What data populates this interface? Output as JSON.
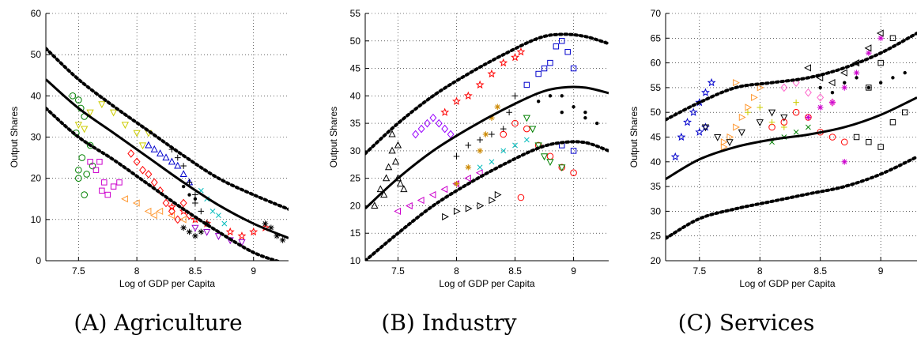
{
  "figure": {
    "captions": [
      "(A) Agriculture",
      "(B) Industry",
      "(C) Services"
    ]
  },
  "chart_data": [
    {
      "type": "scatter",
      "title": "",
      "xlabel": "Log of GDP per Capita",
      "ylabel": "Output Shares",
      "xlim": [
        7.22,
        9.3
      ],
      "ylim": [
        0,
        60
      ],
      "xticks": [
        7.5,
        8,
        8.5,
        9
      ],
      "yticks": [
        0,
        10,
        20,
        30,
        40,
        50,
        60
      ],
      "grid": "dotted",
      "fit": {
        "name": "fitted",
        "x": [
          7.22,
          7.5,
          7.8,
          8.1,
          8.4,
          8.7,
          9.0,
          9.3
        ],
        "y": [
          44,
          37,
          31,
          25,
          19,
          13.5,
          9,
          5.5
        ]
      },
      "bands": [
        {
          "name": "upper",
          "x": [
            7.22,
            7.5,
            7.8,
            8.1,
            8.4,
            8.7,
            9.0,
            9.3
          ],
          "y": [
            51.5,
            44,
            37.5,
            31.5,
            25.5,
            20,
            16,
            12.5
          ]
        },
        {
          "name": "lower",
          "x": [
            7.22,
            7.5,
            7.8,
            8.1,
            8.4,
            8.7,
            9.0,
            9.25
          ],
          "y": [
            37,
            30,
            24.5,
            18.5,
            12.5,
            7,
            2,
            -0.5
          ]
        }
      ],
      "series": [
        {
          "marker": "circle",
          "color": "#008000",
          "x": [
            7.45,
            7.5,
            7.52,
            7.55,
            7.48,
            7.5,
            7.57,
            7.53,
            7.6,
            7.62,
            7.55,
            7.5
          ],
          "y": [
            40,
            39,
            37,
            35,
            31,
            22,
            21,
            25,
            28,
            23,
            16,
            20
          ]
        },
        {
          "marker": "triangle-down",
          "color": "#cccc00",
          "x": [
            7.5,
            7.55,
            7.6,
            7.7,
            7.8,
            7.9,
            8.0,
            8.05,
            8.1
          ],
          "y": [
            33,
            32,
            36,
            38,
            36,
            33,
            31,
            28,
            31
          ]
        },
        {
          "marker": "square",
          "color": "#cc00cc",
          "x": [
            7.6,
            7.65,
            7.7,
            7.72,
            7.75,
            7.8,
            7.85,
            7.68
          ],
          "y": [
            24,
            22,
            17,
            19,
            16,
            18,
            19,
            24
          ]
        },
        {
          "marker": "triangle-left",
          "color": "#ff9933",
          "x": [
            7.9,
            8.0,
            8.1,
            8.15,
            8.2,
            8.3,
            8.4
          ],
          "y": [
            15,
            14,
            12,
            11,
            12,
            11,
            10
          ]
        },
        {
          "marker": "diamond",
          "color": "#ff0000",
          "x": [
            7.95,
            8.0,
            8.05,
            8.1,
            8.15,
            8.2,
            8.25,
            8.3,
            8.35,
            8.4,
            8.45
          ],
          "y": [
            26,
            24,
            22,
            21,
            19,
            17,
            14,
            12,
            10,
            14,
            11
          ]
        },
        {
          "marker": "triangle-up",
          "color": "#0000cc",
          "x": [
            8.1,
            8.15,
            8.2,
            8.25,
            8.3,
            8.35,
            8.4,
            8.45
          ],
          "y": [
            28,
            27,
            26,
            25,
            24,
            23,
            21,
            19
          ]
        },
        {
          "marker": "plus",
          "color": "#000000",
          "x": [
            8.3,
            8.35,
            8.4,
            8.45,
            8.5,
            8.5,
            8.55
          ],
          "y": [
            27,
            25,
            23,
            19,
            16,
            14,
            12
          ]
        },
        {
          "marker": "star",
          "color": "#ff0000",
          "x": [
            8.3,
            8.4,
            8.5,
            8.6,
            8.8,
            8.9,
            9.0,
            9.1
          ],
          "y": [
            13,
            12,
            10,
            9,
            7,
            6,
            7,
            8
          ]
        },
        {
          "marker": "cross",
          "color": "#00bbbb",
          "x": [
            8.55,
            8.6,
            8.65,
            8.7,
            8.75
          ],
          "y": [
            17,
            15,
            12,
            11,
            9
          ]
        },
        {
          "marker": "triangle-down",
          "color": "#9900cc",
          "x": [
            8.5,
            8.6,
            8.7,
            8.8,
            8.9
          ],
          "y": [
            8,
            7,
            6,
            5,
            4.5
          ]
        },
        {
          "marker": "asterisk",
          "color": "#000000",
          "x": [
            8.4,
            8.45,
            8.5,
            8.55,
            8.6,
            9.1,
            9.15,
            9.2,
            9.25
          ],
          "y": [
            8,
            7,
            6,
            7,
            9,
            9,
            8,
            6,
            5
          ]
        },
        {
          "marker": "dot",
          "color": "#000000",
          "x": [
            8.4,
            8.45,
            8.5
          ],
          "y": [
            18,
            16,
            15
          ]
        }
      ]
    },
    {
      "type": "scatter",
      "title": "",
      "xlabel": "Log of GDP per Capita",
      "ylabel": "Output Shares",
      "xlim": [
        7.22,
        9.3
      ],
      "ylim": [
        10,
        55
      ],
      "xticks": [
        7.5,
        8,
        8.5,
        9
      ],
      "yticks": [
        10,
        15,
        20,
        25,
        30,
        35,
        40,
        45,
        50,
        55
      ],
      "grid": "dotted",
      "fit": {
        "name": "fitted",
        "x": [
          7.22,
          7.5,
          7.8,
          8.1,
          8.4,
          8.7,
          8.9,
          9.1,
          9.3
        ],
        "y": [
          19.5,
          25,
          30,
          34,
          37.5,
          40.5,
          41.5,
          41.5,
          40.5
        ]
      },
      "bands": [
        {
          "name": "upper",
          "x": [
            7.22,
            7.5,
            7.8,
            8.1,
            8.4,
            8.7,
            8.9,
            9.1,
            9.3
          ],
          "y": [
            29.5,
            35,
            40,
            44,
            47.5,
            50.5,
            51.2,
            50.8,
            49.5
          ]
        },
        {
          "name": "lower",
          "x": [
            7.22,
            7.5,
            7.8,
            8.1,
            8.4,
            8.7,
            8.9,
            9.1,
            9.3
          ],
          "y": [
            10,
            15,
            20,
            24,
            27.5,
            30.5,
            31.5,
            31.5,
            30
          ]
        }
      ],
      "series": [
        {
          "marker": "triangle-up",
          "color": "#000000",
          "x": [
            7.3,
            7.35,
            7.4,
            7.42,
            7.45,
            7.48,
            7.5,
            7.52,
            7.55,
            7.5,
            7.45,
            7.38
          ],
          "y": [
            20,
            23,
            25,
            27,
            30,
            28,
            25,
            24,
            23,
            31,
            33,
            22
          ]
        },
        {
          "marker": "triangle-left",
          "color": "#cc00cc",
          "x": [
            7.5,
            7.6,
            7.7,
            7.8,
            7.9,
            8.0,
            8.1,
            8.2
          ],
          "y": [
            19,
            20,
            21,
            22,
            23,
            24,
            25,
            26
          ]
        },
        {
          "marker": "diamond",
          "color": "#9900ff",
          "x": [
            7.65,
            7.7,
            7.75,
            7.8,
            7.85,
            7.9,
            7.95
          ],
          "y": [
            33,
            34,
            35,
            36,
            35,
            34,
            33
          ]
        },
        {
          "marker": "triangle-right",
          "color": "#000000",
          "x": [
            7.9,
            8.0,
            8.1,
            8.2,
            8.3,
            8.35
          ],
          "y": [
            18,
            19,
            19.5,
            20,
            21,
            22
          ]
        },
        {
          "marker": "star",
          "color": "#ff0000",
          "x": [
            7.9,
            8.0,
            8.1,
            8.2,
            8.3,
            8.4,
            8.5,
            8.55
          ],
          "y": [
            37,
            39,
            40,
            42,
            44,
            46,
            47,
            48
          ]
        },
        {
          "marker": "asterisk",
          "color": "#cc8800",
          "x": [
            8.0,
            8.1,
            8.2,
            8.25,
            8.3,
            8.35
          ],
          "y": [
            24,
            27,
            30,
            33,
            36,
            38
          ]
        },
        {
          "marker": "plus",
          "color": "#000000",
          "x": [
            8.0,
            8.1,
            8.2,
            8.3,
            8.4,
            8.45,
            8.5
          ],
          "y": [
            29,
            31,
            32,
            33,
            34,
            37,
            40
          ]
        },
        {
          "marker": "cross",
          "color": "#00bbbb",
          "x": [
            8.2,
            8.3,
            8.4,
            8.5,
            8.6
          ],
          "y": [
            27,
            28,
            30,
            31,
            32
          ]
        },
        {
          "marker": "circle",
          "color": "#ff0000",
          "x": [
            8.4,
            8.5,
            8.6,
            8.7,
            8.8,
            8.9,
            9.0,
            8.55
          ],
          "y": [
            33,
            35,
            34,
            31,
            29,
            27,
            26,
            21.5
          ]
        },
        {
          "marker": "triangle-down",
          "color": "#008000",
          "x": [
            8.6,
            8.65,
            8.7,
            8.75,
            8.8,
            8.9
          ],
          "y": [
            36,
            34,
            31,
            29,
            28,
            27
          ]
        },
        {
          "marker": "square",
          "color": "#0000cc",
          "x": [
            8.6,
            8.7,
            8.75,
            8.8,
            8.85,
            8.9,
            8.95,
            9.0,
            8.9,
            9.0
          ],
          "y": [
            42,
            44,
            45,
            46,
            49,
            50,
            48,
            45,
            31,
            30
          ]
        },
        {
          "marker": "dot",
          "color": "#000000",
          "x": [
            8.7,
            8.8,
            8.9,
            9.0,
            9.1,
            9.2,
            8.9,
            9.1
          ],
          "y": [
            39,
            40,
            37,
            38,
            36,
            35,
            40,
            37
          ]
        }
      ]
    },
    {
      "type": "scatter",
      "title": "",
      "xlabel": "Log of GDP per Capita",
      "ylabel": "Output Shares",
      "xlim": [
        7.22,
        9.3
      ],
      "ylim": [
        20,
        70
      ],
      "xticks": [
        7.5,
        8,
        8.5,
        9
      ],
      "yticks": [
        20,
        25,
        30,
        35,
        40,
        45,
        50,
        55,
        60,
        65,
        70
      ],
      "grid": "dotted",
      "fit": {
        "name": "fitted",
        "x": [
          7.22,
          7.5,
          7.8,
          8.1,
          8.4,
          8.7,
          9.0,
          9.3
        ],
        "y": [
          36.5,
          40.5,
          43,
          44.5,
          45.5,
          47,
          49.5,
          53
        ]
      },
      "bands": [
        {
          "name": "upper",
          "x": [
            7.22,
            7.5,
            7.8,
            8.1,
            8.4,
            8.7,
            9.0,
            9.3
          ],
          "y": [
            48.5,
            52,
            55,
            56,
            57,
            59,
            62,
            66
          ]
        },
        {
          "name": "lower",
          "x": [
            7.22,
            7.5,
            7.8,
            8.1,
            8.4,
            8.7,
            9.0,
            9.3
          ],
          "y": [
            24.5,
            28.5,
            30.5,
            32,
            33.5,
            35,
            37.5,
            41
          ]
        }
      ],
      "series": [
        {
          "marker": "star",
          "color": "#0000cc",
          "x": [
            7.3,
            7.35,
            7.4,
            7.45,
            7.5,
            7.55,
            7.6,
            7.5,
            7.55
          ],
          "y": [
            41,
            45,
            48,
            50,
            52,
            54,
            56,
            46,
            47
          ]
        },
        {
          "marker": "triangle-right",
          "color": "#ff9933",
          "x": [
            7.7,
            7.75,
            7.8,
            7.85,
            7.9,
            7.95,
            8.0,
            7.8,
            7.7
          ],
          "y": [
            43,
            45,
            47,
            49,
            51,
            53,
            55,
            56,
            44
          ]
        },
        {
          "marker": "triangle-down",
          "color": "#000000",
          "x": [
            7.55,
            7.65,
            7.75,
            7.85,
            8.0,
            8.1,
            8.2
          ],
          "y": [
            47,
            45,
            44,
            46,
            48,
            50,
            49
          ]
        },
        {
          "marker": "circle",
          "color": "#ff0000",
          "x": [
            8.1,
            8.2,
            8.3,
            8.4,
            8.5,
            8.6,
            8.7
          ],
          "y": [
            47,
            48,
            50,
            49,
            46,
            45,
            44
          ]
        },
        {
          "marker": "diamond",
          "color": "#ff66cc",
          "x": [
            8.2,
            8.3,
            8.4,
            8.5,
            8.6
          ],
          "y": [
            55,
            56,
            54,
            53,
            52
          ]
        },
        {
          "marker": "plus",
          "color": "#cccc00",
          "x": [
            7.9,
            8.0,
            8.1,
            8.2,
            8.3
          ],
          "y": [
            50,
            51,
            48,
            47,
            52
          ]
        },
        {
          "marker": "cross",
          "color": "#008000",
          "x": [
            8.1,
            8.2,
            8.3,
            8.4
          ],
          "y": [
            44,
            45,
            46,
            47
          ]
        },
        {
          "marker": "asterisk",
          "color": "#cc00cc",
          "x": [
            8.4,
            8.5,
            8.6,
            8.7,
            8.8,
            8.9,
            9.0,
            8.7
          ],
          "y": [
            49,
            51,
            52,
            55,
            58,
            62,
            65,
            40
          ]
        },
        {
          "marker": "triangle-left",
          "color": "#000000",
          "x": [
            8.4,
            8.5,
            8.6,
            8.7,
            8.8,
            8.9,
            9.0
          ],
          "y": [
            59,
            57,
            56,
            58,
            60,
            63,
            66
          ]
        },
        {
          "marker": "square",
          "color": "#000000",
          "x": [
            8.8,
            8.9,
            9.0,
            9.1,
            9.2,
            8.9,
            9.0,
            9.1
          ],
          "y": [
            45,
            44,
            43,
            48,
            50,
            55,
            60,
            65
          ]
        },
        {
          "marker": "dot",
          "color": "#000000",
          "x": [
            8.5,
            8.6,
            8.7,
            8.8,
            8.9,
            9.0,
            9.1,
            9.2
          ],
          "y": [
            55,
            54,
            56,
            57,
            55,
            56,
            57,
            58
          ]
        }
      ]
    }
  ]
}
